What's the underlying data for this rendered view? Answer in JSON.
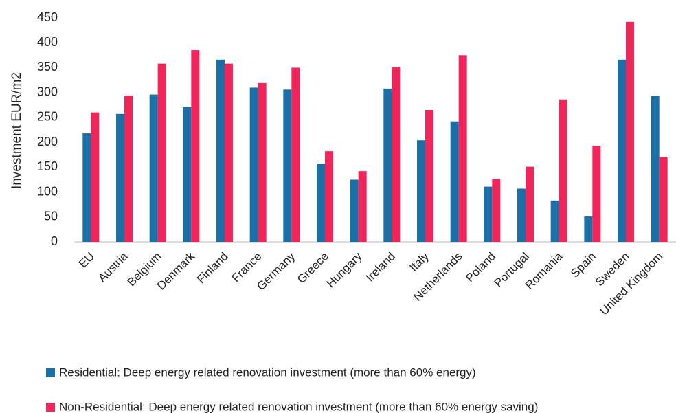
{
  "chart_data": {
    "type": "bar",
    "y_label": "Investment EUR/m2",
    "categories": [
      "EU",
      "Austria",
      "Belgium",
      "Denmark",
      "Finland",
      "France",
      "Germany",
      "Greece",
      "Hungary",
      "Ireland",
      "Italy",
      "Netherlands",
      "Poland",
      "Portugal",
      "Romania",
      "Spain",
      "Sweden",
      "United Kingdom"
    ],
    "series": [
      {
        "name": "Residential: Deep energy related renovation investment (more than 60% energy)",
        "color": "#1a6fa6",
        "values": [
          218,
          257,
          296,
          271,
          366,
          310,
          306,
          157,
          125,
          308,
          204,
          242,
          111,
          107,
          83,
          51,
          366,
          293
        ]
      },
      {
        "name": "Non-Residential: Deep energy related renovation investment (more than 60% energy saving)",
        "color": "#f0265a",
        "values": [
          260,
          294,
          358,
          385,
          358,
          319,
          350,
          182,
          142,
          351,
          265,
          375,
          126,
          151,
          286,
          193,
          442,
          171
        ]
      }
    ],
    "ylim": [
      0,
      450
    ],
    "yticks": [
      0,
      50,
      100,
      150,
      200,
      250,
      300,
      350,
      400,
      450
    ],
    "grid": false
  }
}
